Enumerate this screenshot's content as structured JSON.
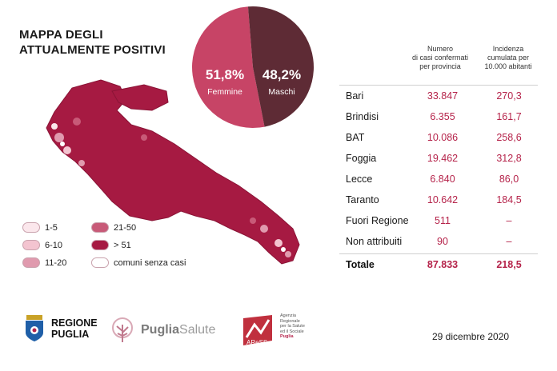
{
  "title": {
    "line1": "MAPPA DEGLI",
    "line2": "ATTUALMENTE POSITIVI"
  },
  "gender": {
    "female": {
      "pct": "51,8%",
      "label": "Femmine",
      "color": "#c74466"
    },
    "male": {
      "pct": "48,2%",
      "label": "Maschi",
      "color": "#5e2b35"
    }
  },
  "legend": [
    {
      "label": "1-5",
      "color": "#fbe7ec"
    },
    {
      "label": "6-10",
      "color": "#f3c4d0"
    },
    {
      "label": "11-20",
      "color": "#e09aae"
    },
    {
      "label": "21-50",
      "color": "#c85a78"
    },
    {
      "label": "> 51",
      "color": "#a61a42"
    },
    {
      "label": "comuni senza casi",
      "color": "#ffffff"
    }
  ],
  "table": {
    "col1": "Numero di casi confermati per provincia",
    "col2": "Incidenza cumulata per 10.000 abitanti",
    "col1_lines": [
      "Numero",
      "di casi confermati",
      "per provincia"
    ],
    "col2_lines": [
      "Incidenza",
      "cumulata per",
      "10.000 abitanti"
    ],
    "rows": [
      {
        "name": "Bari",
        "cases": "33.847",
        "incidence": "270,3"
      },
      {
        "name": "Brindisi",
        "cases": "6.355",
        "incidence": "161,7"
      },
      {
        "name": "BAT",
        "cases": "10.086",
        "incidence": "258,6"
      },
      {
        "name": "Foggia",
        "cases": "19.462",
        "incidence": "312,8"
      },
      {
        "name": "Lecce",
        "cases": "6.840",
        "incidence": "86,0"
      },
      {
        "name": "Taranto",
        "cases": "10.642",
        "incidence": "184,5"
      },
      {
        "name": "Fuori Regione",
        "cases": "511",
        "incidence": "–"
      },
      {
        "name": "Non attribuiti",
        "cases": "90",
        "incidence": "–"
      }
    ],
    "total": {
      "name": "Totale",
      "cases": "87.833",
      "incidence": "218,5"
    }
  },
  "footer": {
    "regione": {
      "line1": "REGIONE",
      "line2": "PUGLIA"
    },
    "pugliasalute": {
      "bold": "Puglia",
      "light": "Salute"
    },
    "aress": {
      "mark": "AReSS",
      "desc": [
        "Agenzia",
        "Regionale",
        "per la Salute",
        "ed il Sociale"
      ],
      "region": "Puglia"
    },
    "date": "29 dicembre 2020"
  },
  "colors": {
    "accent": "#b5234a",
    "map_fill": "#a61a42"
  }
}
